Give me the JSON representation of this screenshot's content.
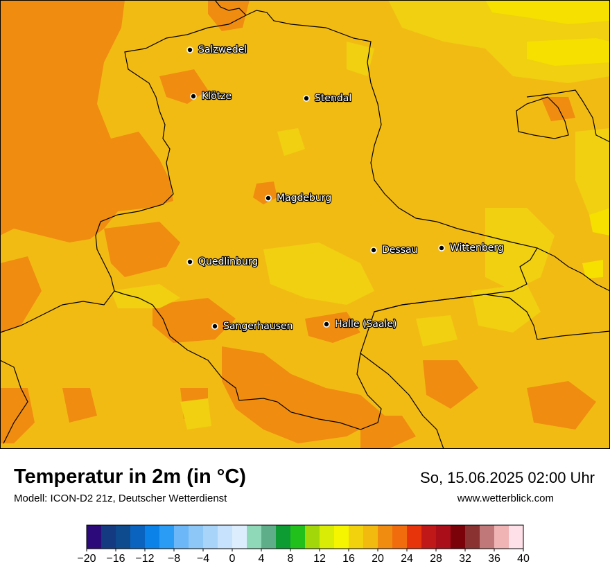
{
  "map": {
    "colors": {
      "base": "#f2bb14",
      "warm": "#f08c10",
      "warm2": "#f08c10",
      "cool": "#f0d010",
      "cool2": "#f5e000",
      "border": "#000000",
      "frame": "#000000"
    },
    "cities": [
      {
        "name": "Salzwedel"
      },
      {
        "name": "Klötze"
      },
      {
        "name": "Stendal"
      },
      {
        "name": "Magdeburg"
      },
      {
        "name": "Dessau"
      },
      {
        "name": "Wittenberg"
      },
      {
        "name": "Quedlinburg"
      },
      {
        "name": "Sangerhausen"
      },
      {
        "name": "Halle (Saale)"
      }
    ]
  },
  "footer": {
    "title": "Temperatur in 2m (in °C)",
    "model": "Modell: ICON-D2 21z, Deutscher Wetterdienst",
    "datetime": "So, 15.06.2025 02:00 Uhr",
    "website": "www.wetterblick.com"
  },
  "legend": {
    "tick_labels": [
      "−20",
      "−16",
      "−12",
      "−8",
      "−4",
      "0",
      "4",
      "8",
      "12",
      "16",
      "20",
      "24",
      "28",
      "32",
      "36",
      "40"
    ],
    "colors": [
      "#2d0a7a",
      "#143a82",
      "#0e4a8e",
      "#0a64bf",
      "#0a82e8",
      "#2b9cf5",
      "#6cb7f7",
      "#8dc7f8",
      "#a9d4fa",
      "#c6e2fc",
      "#dceefd",
      "#8fd8b8",
      "#5fae8a",
      "#0d9b34",
      "#22c01a",
      "#a2d80a",
      "#d8ec05",
      "#f5f500",
      "#f2d20c",
      "#f2b90e",
      "#f08c10",
      "#f06c0c",
      "#e8340a",
      "#c01818",
      "#aa0e18",
      "#7a0208",
      "#8a3232",
      "#c07878",
      "#f0b4b4",
      "#fde0e8"
    ]
  }
}
